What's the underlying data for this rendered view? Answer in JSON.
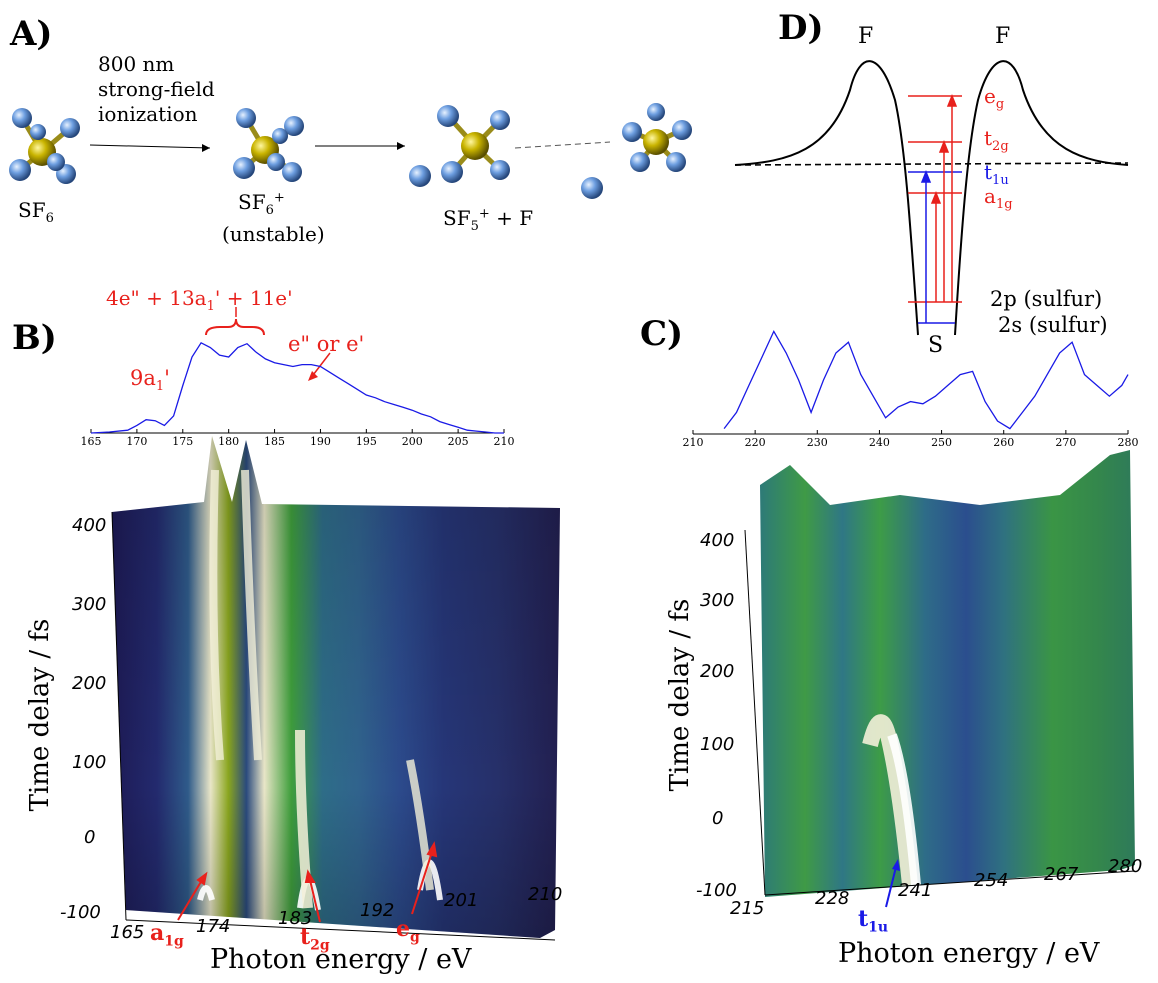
{
  "panels": {
    "A": {
      "label": "A)",
      "process_text": [
        "800 nm",
        "strong-field",
        "ionization"
      ],
      "species": {
        "sf6": "SF",
        "sf6_sub": "6",
        "sf6_ion": "SF",
        "sf6_ion_sub": "6",
        "sf6_ion_sup": "+",
        "unstable": "(unstable)",
        "sf5_ion": "SF",
        "sf5_ion_sub": "5",
        "sf5_ion_sup": "+",
        "plus_f": "+ F"
      }
    },
    "B": {
      "label": "B)",
      "annotation_group": "4e\" + 13a",
      "annotation_group_tail": "' + 11e'",
      "annotation_group_sub": "1",
      "annotation_9a": "9a",
      "annotation_9a_sub": "1",
      "annotation_9a_tail": "'",
      "annotation_eorE": "e\" or e'",
      "y_axis_label": "Time delay / fs",
      "x_axis_label": "Photon energy / eV",
      "peak_labels": [
        {
          "main": "a",
          "sub": "1g"
        },
        {
          "main": "t",
          "sub": "2g"
        },
        {
          "main": "e",
          "sub": "g"
        }
      ]
    },
    "C": {
      "label": "C)",
      "y_axis_label": "Time delay / fs",
      "x_axis_label": "Photon energy / eV",
      "peak_label": {
        "main": "t",
        "sub": "1u"
      }
    },
    "D": {
      "label": "D)",
      "f_left": "F",
      "f_right": "F",
      "s_label": "S",
      "levels": [
        {
          "main": "e",
          "sub": "g",
          "color": "#e8211c"
        },
        {
          "main": "t",
          "sub": "2g",
          "color": "#e8211c"
        },
        {
          "main": "t",
          "sub": "1u",
          "color": "#1a1ae6"
        },
        {
          "main": "a",
          "sub": "1g",
          "color": "#e8211c"
        }
      ],
      "core_2p": "2p (sulfur)",
      "core_2s": "2s (sulfur)"
    }
  },
  "chart_data": [
    {
      "type": "line",
      "xlim": [
        165,
        210
      ],
      "xticks": [
        "165",
        "170",
        "175",
        "180",
        "185",
        "190",
        "195",
        "200",
        "205",
        "210"
      ],
      "x": [
        165,
        167,
        169,
        170,
        171,
        172,
        173,
        174,
        175,
        176,
        177,
        178,
        179,
        180,
        181,
        182,
        183,
        184,
        185,
        186,
        187,
        188,
        189,
        190,
        191,
        192,
        193,
        194,
        195,
        196,
        197,
        198,
        199,
        200,
        201,
        202,
        203,
        204,
        205,
        206,
        207,
        208,
        209,
        210
      ],
      "values": [
        0.0,
        0.01,
        0.03,
        0.08,
        0.14,
        0.13,
        0.08,
        0.18,
        0.5,
        0.8,
        0.95,
        0.9,
        0.82,
        0.8,
        0.9,
        0.94,
        0.85,
        0.78,
        0.74,
        0.72,
        0.7,
        0.72,
        0.72,
        0.7,
        0.64,
        0.58,
        0.52,
        0.46,
        0.4,
        0.37,
        0.33,
        0.3,
        0.27,
        0.24,
        0.2,
        0.17,
        0.12,
        0.09,
        0.06,
        0.03,
        0.02,
        0.01,
        0.0,
        0.0
      ],
      "color": "#1a1ae6"
    },
    {
      "type": "line",
      "xlim": [
        210,
        280
      ],
      "xticks": [
        "210",
        "220",
        "230",
        "240",
        "250",
        "260",
        "270",
        "280"
      ],
      "x": [
        215,
        217,
        219,
        221,
        223,
        225,
        227,
        229,
        231,
        233,
        235,
        237,
        239,
        241,
        243,
        245,
        247,
        249,
        251,
        253,
        255,
        257,
        259,
        261,
        263,
        265,
        267,
        269,
        271,
        273,
        275,
        277,
        279,
        280
      ],
      "values": [
        0.05,
        0.2,
        0.45,
        0.7,
        0.95,
        0.75,
        0.5,
        0.2,
        0.5,
        0.75,
        0.85,
        0.55,
        0.35,
        0.15,
        0.25,
        0.3,
        0.28,
        0.35,
        0.45,
        0.55,
        0.58,
        0.3,
        0.12,
        0.05,
        0.2,
        0.35,
        0.55,
        0.75,
        0.85,
        0.55,
        0.45,
        0.35,
        0.45,
        0.55
      ],
      "color": "#1a1ae6"
    },
    {
      "type": "heatmap",
      "title": "",
      "xlabel": "Photon energy / eV",
      "ylabel": "Time delay / fs",
      "xticks": [
        "165",
        "174",
        "183",
        "192",
        "201",
        "210"
      ],
      "yticks": [
        "-100",
        "0",
        "100",
        "200",
        "300",
        "400"
      ],
      "xlim": [
        165,
        210
      ],
      "ylim": [
        -100,
        450
      ]
    },
    {
      "type": "heatmap",
      "title": "",
      "xlabel": "Photon energy / eV",
      "ylabel": "Time delay / fs",
      "xticks": [
        "215",
        "228",
        "241",
        "254",
        "267",
        "280"
      ],
      "yticks": [
        "-100",
        "0",
        "100",
        "200",
        "300",
        "400"
      ],
      "xlim": [
        215,
        280
      ],
      "ylim": [
        -100,
        450
      ]
    }
  ]
}
